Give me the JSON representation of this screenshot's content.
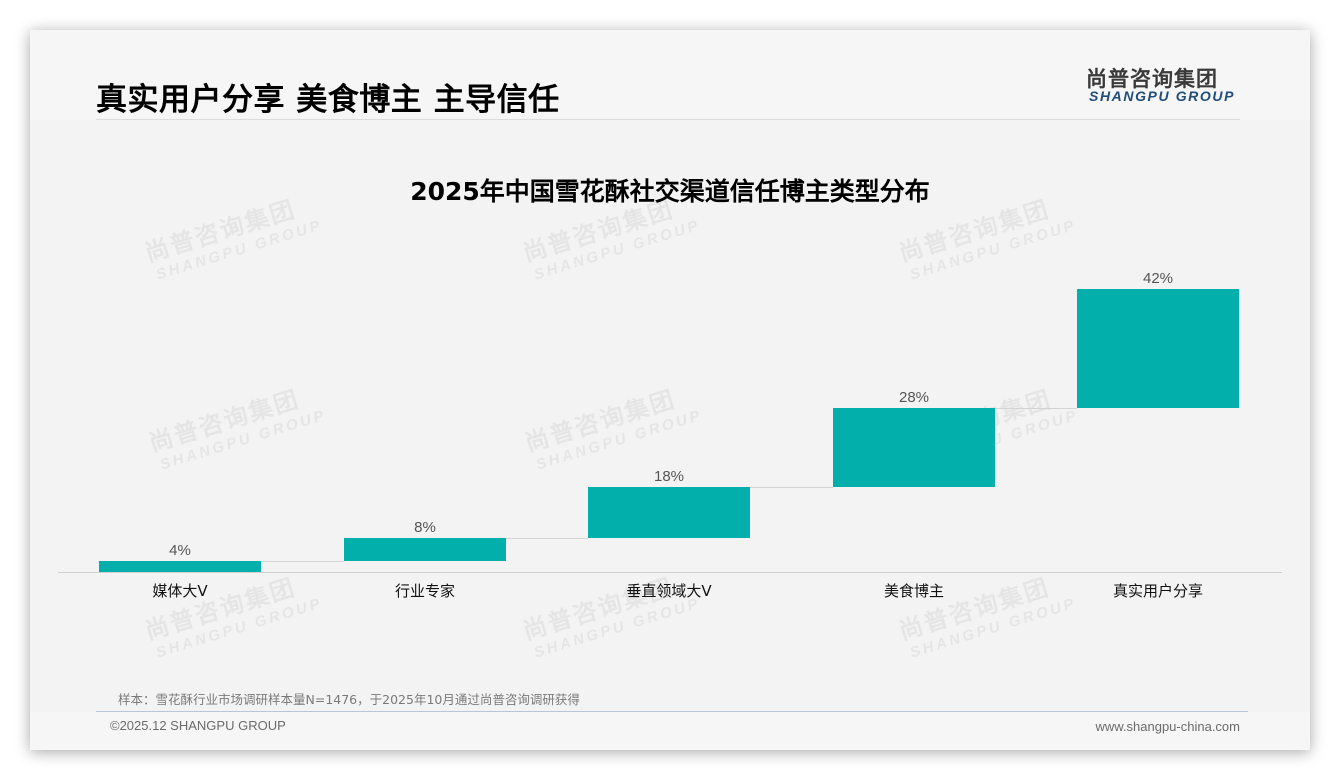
{
  "header": {
    "title": "真实用户分享 美食博主 主导信任",
    "logo_cn": "尚普咨询集团",
    "logo_en": "SHANGPU GROUP"
  },
  "watermark": {
    "cn": "尚普咨询集团",
    "en": "SHANGPU GROUP"
  },
  "colors": {
    "bar": "#02afaa",
    "logo_en": "#1f4e79",
    "background": "#f3f3f3"
  },
  "chart_data": {
    "type": "bar",
    "subtype": "waterfall",
    "title": "2025年中国雪花酥社交渠道信任博主类型分布",
    "categories": [
      "媒体大V",
      "行业专家",
      "垂直领域大V",
      "美食博主",
      "真实用户分享"
    ],
    "values": [
      4,
      8,
      18,
      28,
      42
    ],
    "value_labels": [
      "4%",
      "8%",
      "18%",
      "28%",
      "42%"
    ],
    "unit": "%",
    "xlabel": "",
    "ylabel": "",
    "ylim": [
      0,
      100
    ],
    "grid": false,
    "legend": null,
    "connectors": true
  },
  "footer": {
    "note": "样本：雪花酥行业市场调研样本量N=1476，于2025年10月通过尚普咨询调研获得",
    "copyright": "©2025.12 SHANGPU GROUP",
    "website": "www.shangpu-china.com"
  }
}
